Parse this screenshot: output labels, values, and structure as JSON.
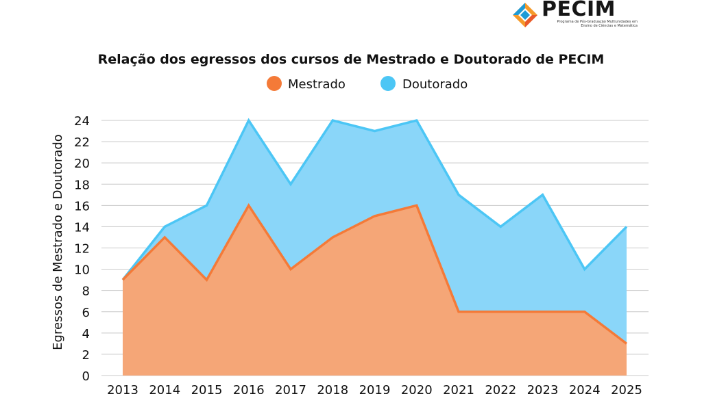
{
  "logo": {
    "title": "PECIM",
    "subtitle_line1": "Programa de Pós-Graduação Multiunidades em",
    "subtitle_line2": "Ensino de Ciências e Matemática"
  },
  "colors": {
    "mestrado_line": "#f47a38",
    "mestrado_fill": "#f5a677",
    "doutorado_line": "#4cc6f5",
    "doutorado_fill": "#8ad6f9",
    "grid": "#c8c8c8"
  },
  "chart_data": {
    "type": "area",
    "title": "Relação dos egressos dos cursos de Mestrado e Doutorado de PECIM",
    "xlabel": "",
    "ylabel": "Egressos de Mestrado e Doutorado",
    "ylim": [
      0,
      24
    ],
    "yticks": [
      0,
      2,
      4,
      6,
      8,
      10,
      12,
      14,
      16,
      18,
      20,
      22,
      24
    ],
    "grid": true,
    "legend_position": "top-center",
    "categories": [
      "2013",
      "2014",
      "2015",
      "2016",
      "2017",
      "2018",
      "2019",
      "2020",
      "2021",
      "2022",
      "2023",
      "2024",
      "2025"
    ],
    "series": [
      {
        "name": "Mestrado",
        "values": [
          9,
          13,
          9,
          16,
          10,
          13,
          15,
          16,
          6,
          6,
          6,
          6,
          3
        ]
      },
      {
        "name": "Doutorado",
        "values": [
          9,
          14,
          16,
          24,
          18,
          24,
          23,
          24,
          17,
          14,
          17,
          10,
          14
        ]
      }
    ]
  }
}
